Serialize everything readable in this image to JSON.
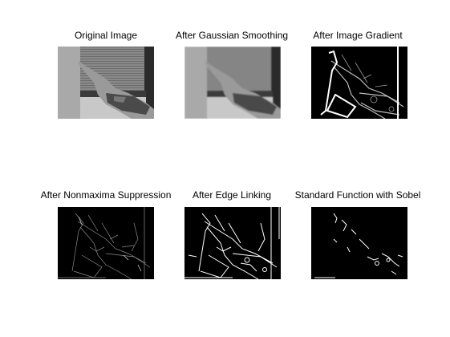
{
  "panels": [
    {
      "title": "Original Image",
      "image": "hand-pointing-grayscale"
    },
    {
      "title": "After Gaussian Smoothing",
      "image": "hand-pointing-blurred"
    },
    {
      "title": "After Image Gradient",
      "image": "gradient-magnitude"
    },
    {
      "title": "After Nonmaxima Suppression",
      "image": "thin-edges"
    },
    {
      "title": "After Edge Linking",
      "image": "linked-edges"
    },
    {
      "title": "Standard Function with Sobel",
      "image": "sobel-edges"
    }
  ]
}
